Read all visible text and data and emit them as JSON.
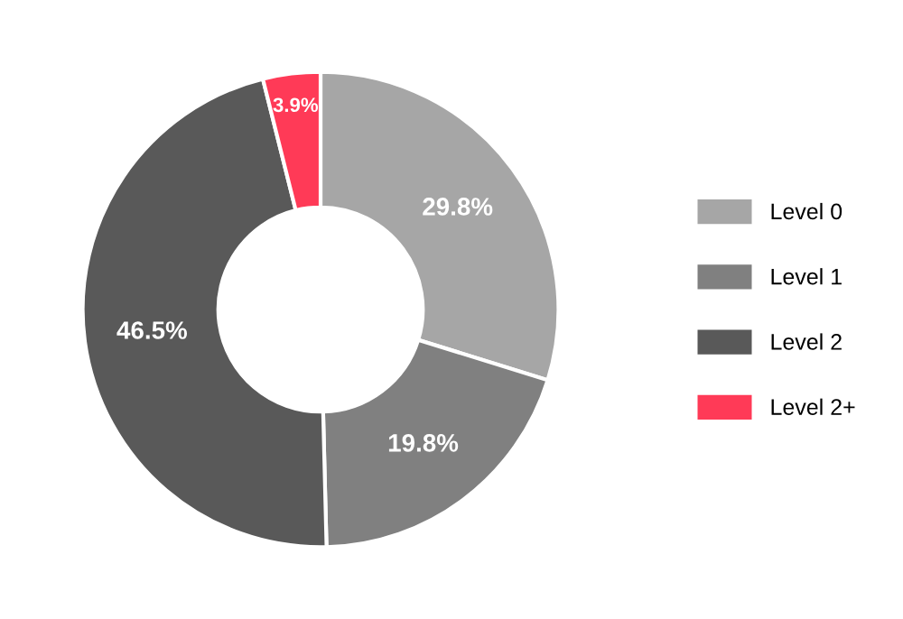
{
  "chart_data": {
    "type": "donut",
    "categories": [
      "Level 0",
      "Level 1",
      "Level 2",
      "Level 2+"
    ],
    "values": [
      29.8,
      19.8,
      46.5,
      3.9
    ],
    "colors": [
      "#a6a6a6",
      "#808080",
      "#595959",
      "#ff3a57"
    ],
    "value_labels": [
      "29.8%",
      "19.8%",
      "46.5%",
      "3.9%"
    ],
    "legend": "right"
  }
}
